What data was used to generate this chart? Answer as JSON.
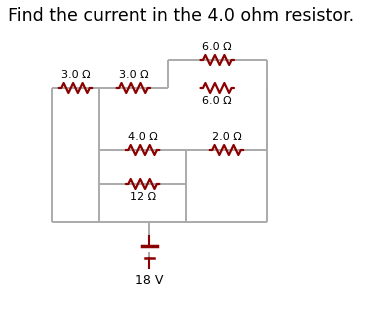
{
  "title": "Find the current in the 4.0 ohm resistor.",
  "title_fontsize": 12.5,
  "wire_color": "#aaaaaa",
  "resistor_color": "#8B0000",
  "text_color": "#000000",
  "background_color": "#ffffff",
  "labels": {
    "r_outer_left": "3.0 Ω",
    "r_upper_mid": "3.0 Ω",
    "r_top_right_top": "6.0 Ω",
    "r_top_right_bot": "6.0 Ω",
    "r_mid_top": "4.0 Ω",
    "r_mid_bot": "12 Ω",
    "r_right_mid": "2.0 Ω",
    "battery": "18 V"
  }
}
